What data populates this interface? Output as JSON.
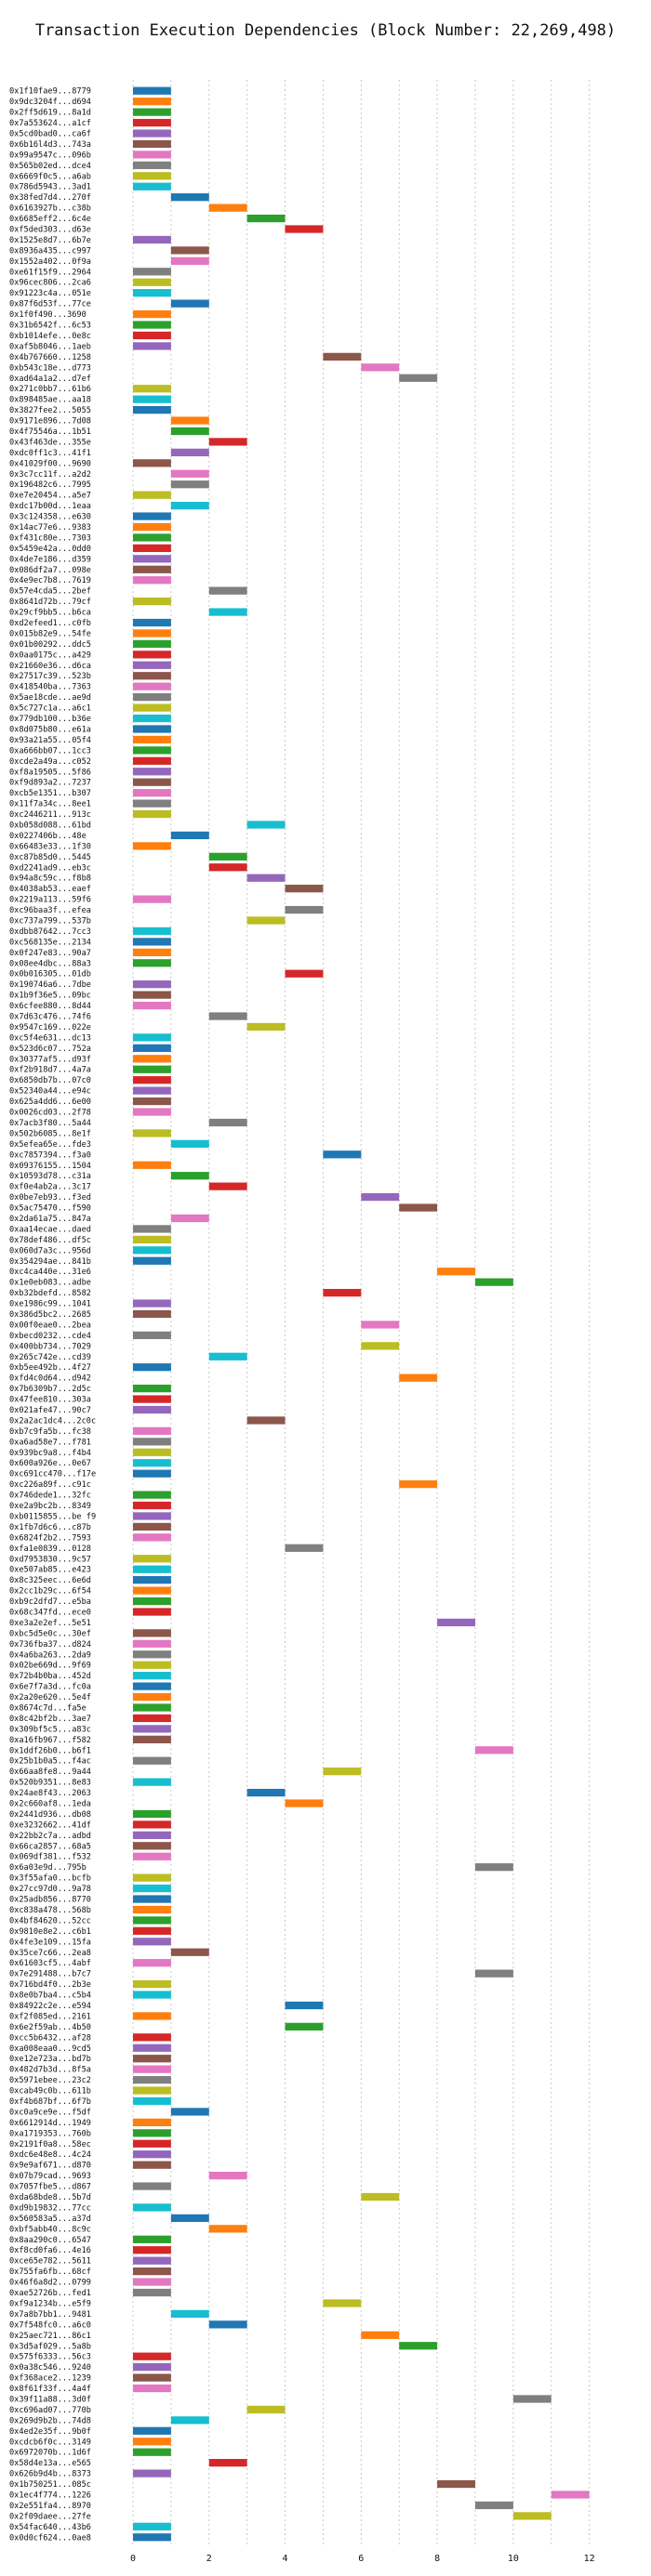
{
  "chart_data": {
    "type": "bar",
    "orientation": "horizontal",
    "title": "Transaction Execution Dependencies (Block Number: 22,269,498)",
    "xlabel": "",
    "ylabel": "",
    "xlim": [
      0,
      12.4
    ],
    "xticks": [
      0,
      2,
      4,
      6,
      8,
      10,
      12
    ],
    "grid": true,
    "bar_length": 1,
    "palette": [
      "#1f77b4",
      "#ff7f0e",
      "#2ca02c",
      "#d62728",
      "#9467bd",
      "#8c564b",
      "#e377c2",
      "#7f7f7f",
      "#bcbd22",
      "#17becf"
    ],
    "transactions": [
      {
        "label": "0x1f10fae9...8779",
        "start": 0
      },
      {
        "label": "0x9dc3204f...d694",
        "start": 0
      },
      {
        "label": "0x2ff5d619...8a1d",
        "start": 0
      },
      {
        "label": "0x7a553624...a1cf",
        "start": 0
      },
      {
        "label": "0x5cd0bad0...ca6f",
        "start": 0
      },
      {
        "label": "0x6b16l4d3...743a",
        "start": 0
      },
      {
        "label": "0x99a9547c...096b",
        "start": 0
      },
      {
        "label": "0x565b02ed...dce4",
        "start": 0
      },
      {
        "label": "0x6669f0c5...a6ab",
        "start": 0
      },
      {
        "label": "0x786d5943...3ad1",
        "start": 0
      },
      {
        "label": "0x38fed7d4...270f",
        "start": 1
      },
      {
        "label": "0x6163927b...c38b",
        "start": 2
      },
      {
        "label": "0x6685eff2...6c4e",
        "start": 3
      },
      {
        "label": "0xf5ded303...d63e",
        "start": 4
      },
      {
        "label": "0x1525e8d7...6b7e",
        "start": 0
      },
      {
        "label": "0x8936a435...c997",
        "start": 1
      },
      {
        "label": "0x1552a402...0f9a",
        "start": 1
      },
      {
        "label": "0xe61f15f9...2964",
        "start": 0
      },
      {
        "label": "0x96cec806...2ca6",
        "start": 0
      },
      {
        "label": "0x91223c4a...051e",
        "start": 0
      },
      {
        "label": "0x87f6d53f...77ce",
        "start": 1
      },
      {
        "label": "0x1f0f490...3690",
        "start": 0
      },
      {
        "label": "0x31b6542f...6c53",
        "start": 0
      },
      {
        "label": "0xb1014efe...0e8c",
        "start": 0
      },
      {
        "label": "0xaf5b8046...1aeb",
        "start": 0
      },
      {
        "label": "0x4b767660...1258",
        "start": 5
      },
      {
        "label": "0xb543c18e...d773",
        "start": 6
      },
      {
        "label": "0xad64a1a2...d7ef",
        "start": 7
      },
      {
        "label": "0x271c0bb7...61b6",
        "start": 0
      },
      {
        "label": "0x898485ae...aa18",
        "start": 0
      },
      {
        "label": "0x3827fee2...5055",
        "start": 0
      },
      {
        "label": "0x9171e896...7d08",
        "start": 1
      },
      {
        "label": "0x4f75546a...1b51",
        "start": 1
      },
      {
        "label": "0x43f463de...355e",
        "start": 2
      },
      {
        "label": "0xdc0ff1c3...41f1",
        "start": 1
      },
      {
        "label": "0x41029f00...9690",
        "start": 0
      },
      {
        "label": "0x3c7cc11f...a2d2",
        "start": 1
      },
      {
        "label": "0x196482c6...7995",
        "start": 1
      },
      {
        "label": "0xe7e20454...a5e7",
        "start": 0
      },
      {
        "label": "0xdc17b00d...1eaa",
        "start": 1
      },
      {
        "label": "0x3c124358...e630",
        "start": 0
      },
      {
        "label": "0x14ac77e6...9383",
        "start": 0
      },
      {
        "label": "0xf431c80e...7303",
        "start": 0
      },
      {
        "label": "0x5459e42a...0dd0",
        "start": 0
      },
      {
        "label": "0x4de7e186...d359",
        "start": 0
      },
      {
        "label": "0x086df2a7...098e",
        "start": 0
      },
      {
        "label": "0x4e9ec7b8...7619",
        "start": 0
      },
      {
        "label": "0x57e4cda5...2bef",
        "start": 2
      },
      {
        "label": "0x8641d72b...79cf",
        "start": 0
      },
      {
        "label": "0x29cf9bb5...b6ca",
        "start": 2
      },
      {
        "label": "0xd2efeed1...c0fb",
        "start": 0
      },
      {
        "label": "0x015b82e9...54fe",
        "start": 0
      },
      {
        "label": "0x01b00292...ddc5",
        "start": 0
      },
      {
        "label": "0x0aa0175c...a429",
        "start": 0
      },
      {
        "label": "0x21660e36...d6ca",
        "start": 0
      },
      {
        "label": "0x27517c39...523b",
        "start": 0
      },
      {
        "label": "0x418540ba...7363",
        "start": 0
      },
      {
        "label": "0x5ae18cde...ae9d",
        "start": 0
      },
      {
        "label": "0x5c727c1a...a6c1",
        "start": 0
      },
      {
        "label": "0x779db100...b36e",
        "start": 0
      },
      {
        "label": "0x8d075b80...e61a",
        "start": 0
      },
      {
        "label": "0x93a21a55...05f4",
        "start": 0
      },
      {
        "label": "0xa666bb07...1cc3",
        "start": 0
      },
      {
        "label": "0xcde2a49a...c052",
        "start": 0
      },
      {
        "label": "0xf8a19505...5f86",
        "start": 0
      },
      {
        "label": "0xf9d893a2...7237",
        "start": 0
      },
      {
        "label": "0xcb5e1351...b307",
        "start": 0
      },
      {
        "label": "0x11f7a34c...8ee1",
        "start": 0
      },
      {
        "label": "0xc2446211...913c",
        "start": 0
      },
      {
        "label": "0xb058d088...61bd",
        "start": 3
      },
      {
        "label": "0x0227406b...48e",
        "start": 1
      },
      {
        "label": "0x66483e33...1f30",
        "start": 0
      },
      {
        "label": "0xc87b85d0...5445",
        "start": 2
      },
      {
        "label": "0xd2241ad9...eb3c",
        "start": 2
      },
      {
        "label": "0x94a8c59c...f8b8",
        "start": 3
      },
      {
        "label": "0x4038ab53...eaef",
        "start": 4
      },
      {
        "label": "0x2219a113...59f6",
        "start": 0
      },
      {
        "label": "0xc96baa3f...efea",
        "start": 4
      },
      {
        "label": "0xc737a799...537b",
        "start": 3
      },
      {
        "label": "0xdbb87642...7cc3",
        "start": 0
      },
      {
        "label": "0xc568135e...2134",
        "start": 0
      },
      {
        "label": "0x0f247e83...90a7",
        "start": 0
      },
      {
        "label": "0x08ee4dbc...88a3",
        "start": 0
      },
      {
        "label": "0x0b016305...01db",
        "start": 4
      },
      {
        "label": "0x190746a6...7dbe",
        "start": 0
      },
      {
        "label": "0x1b9f36e5...09bc",
        "start": 0
      },
      {
        "label": "0x6cfee880...8d44",
        "start": 0
      },
      {
        "label": "0x7d63c476...74f6",
        "start": 2
      },
      {
        "label": "0x9547c169...022e",
        "start": 3
      },
      {
        "label": "0xc5f4e631...dc13",
        "start": 0
      },
      {
        "label": "0x523d6c07...752a",
        "start": 0
      },
      {
        "label": "0x30377af5...d93f",
        "start": 0
      },
      {
        "label": "0xf2b918d7...4a7a",
        "start": 0
      },
      {
        "label": "0x6850db7b...07c0",
        "start": 0
      },
      {
        "label": "0x52340a44...e94c",
        "start": 0
      },
      {
        "label": "0x625a4dd6...6e00",
        "start": 0
      },
      {
        "label": "0x0026cd03...2f78",
        "start": 0
      },
      {
        "label": "0x7acb3f80...5a44",
        "start": 2
      },
      {
        "label": "0x502b6085...8e1f",
        "start": 0
      },
      {
        "label": "0x5efea65e...fde3",
        "start": 1
      },
      {
        "label": "0xc7857394...f3a0",
        "start": 5
      },
      {
        "label": "0x09376155...1504",
        "start": 0
      },
      {
        "label": "0x10593d78...c31a",
        "start": 1
      },
      {
        "label": "0xf0e4ab2a...3c17",
        "start": 2
      },
      {
        "label": "0x0be7eb93...f3ed",
        "start": 6
      },
      {
        "label": "0x5ac75470...f590",
        "start": 7
      },
      {
        "label": "0x2da61a75...847a",
        "start": 1
      },
      {
        "label": "0xaa14ecae...daed",
        "start": 0
      },
      {
        "label": "0x78def486...df5c",
        "start": 0
      },
      {
        "label": "0x060d7a3c...956d",
        "start": 0
      },
      {
        "label": "0x354294ae...841b",
        "start": 0
      },
      {
        "label": "0xc4ca440e...31e6",
        "start": 8
      },
      {
        "label": "0x1e0eb083...adbe",
        "start": 9
      },
      {
        "label": "0xb32bdefd...8582",
        "start": 5
      },
      {
        "label": "0xe1986c99...1041",
        "start": 0
      },
      {
        "label": "0x386d5bc2...2685",
        "start": 0
      },
      {
        "label": "0x00f0eae0...2bea",
        "start": 6
      },
      {
        "label": "0xbecd0232...cde4",
        "start": 0
      },
      {
        "label": "0x400bb734...7029",
        "start": 6
      },
      {
        "label": "0x265c742e...cd39",
        "start": 2
      },
      {
        "label": "0xb5ee492b...4f27",
        "start": 0
      },
      {
        "label": "0xfd4c0d64...d942",
        "start": 7
      },
      {
        "label": "0x7b6309b7...2d5c",
        "start": 0
      },
      {
        "label": "0x47fee810...303a",
        "start": 0
      },
      {
        "label": "0x021afe47...90c7",
        "start": 0
      },
      {
        "label": "0x2a2ac1dc4...2c0c",
        "start": 3
      },
      {
        "label": "0xb7c9fa5b...fc38",
        "start": 0
      },
      {
        "label": "0xa6ad58e7...f781",
        "start": 0
      },
      {
        "label": "0x939bc9a8...f4b4",
        "start": 0
      },
      {
        "label": "0x600a926e...0e67",
        "start": 0
      },
      {
        "label": "0xc691cc470...f17e",
        "start": 0
      },
      {
        "label": "0xc226a89f...c91c",
        "start": 7
      },
      {
        "label": "0x746dede1...32fc",
        "start": 0
      },
      {
        "label": "0xe2a9bc2b...8349",
        "start": 0
      },
      {
        "label": "0xb0115855...be f9",
        "start": 0
      },
      {
        "label": "0x1fb7d6c6...c87b",
        "start": 0
      },
      {
        "label": "0x6824f2b2...7593",
        "start": 0
      },
      {
        "label": "0xfa1e0839...0128",
        "start": 4
      },
      {
        "label": "0xd7953830...9c57",
        "start": 0
      },
      {
        "label": "0xe507ab85...e423",
        "start": 0
      },
      {
        "label": "0x8c325eec...6e6d",
        "start": 0
      },
      {
        "label": "0x2cc1b29c...6f54",
        "start": 0
      },
      {
        "label": "0xb9c2dfd7...e5ba",
        "start": 0
      },
      {
        "label": "0x68c347fd...ece0",
        "start": 0
      },
      {
        "label": "0xe3a2e2ef...5e51",
        "start": 8
      },
      {
        "label": "0xbc5d5e0c...30ef",
        "start": 0
      },
      {
        "label": "0x736fba37...d824",
        "start": 0
      },
      {
        "label": "0x4a6ba263...2da9",
        "start": 0
      },
      {
        "label": "0x02be669d...9f69",
        "start": 0
      },
      {
        "label": "0x72b4b0ba...452d",
        "start": 0
      },
      {
        "label": "0x6e7f7a3d...fc0a",
        "start": 0
      },
      {
        "label": "0x2a20e620...5e4f",
        "start": 0
      },
      {
        "label": "0x8674c7d...fa5e",
        "start": 0
      },
      {
        "label": "0x8c42bf2b...3ae7",
        "start": 0
      },
      {
        "label": "0x309bf5c5...a83c",
        "start": 0
      },
      {
        "label": "0xa16fb967...f582",
        "start": 0
      },
      {
        "label": "0x1ddf26b0...b6f1",
        "start": 9
      },
      {
        "label": "0x25b1b0a5...f4ac",
        "start": 0
      },
      {
        "label": "0x66aa8fe8...9a44",
        "start": 5
      },
      {
        "label": "0x520b9351...8e83",
        "start": 0
      },
      {
        "label": "0x24ae8f43...2063",
        "start": 3
      },
      {
        "label": "0x2c660af8...1eda",
        "start": 4
      },
      {
        "label": "0x2441d936...db08",
        "start": 0
      },
      {
        "label": "0xe3232662...41df",
        "start": 0
      },
      {
        "label": "0x22bb2c7a...adbd",
        "start": 0
      },
      {
        "label": "0x66ca2857...68a5",
        "start": 0
      },
      {
        "label": "0x069df381...f532",
        "start": 0
      },
      {
        "label": "0x6a03e9d...795b",
        "start": 9
      },
      {
        "label": "0x3f55afa0...bcfb",
        "start": 0
      },
      {
        "label": "0x27cc97d0...9a78",
        "start": 0
      },
      {
        "label": "0x25adb856...8770",
        "start": 0
      },
      {
        "label": "0xc838a478...568b",
        "start": 0
      },
      {
        "label": "0x4bf84620...52cc",
        "start": 0
      },
      {
        "label": "0x9810e8e2...c6b1",
        "start": 0
      },
      {
        "label": "0x4fe3e109...15fa",
        "start": 0
      },
      {
        "label": "0x35ce7c66...2ea8",
        "start": 1
      },
      {
        "label": "0x61603cf5...4abf",
        "start": 0
      },
      {
        "label": "0x7e291488...b7c7",
        "start": 9
      },
      {
        "label": "0x716bd4f0...2b3e",
        "start": 0
      },
      {
        "label": "0x8e0b7ba4...c5b4",
        "start": 0
      },
      {
        "label": "0x84922c2e...e594",
        "start": 4
      },
      {
        "label": "0xf2f085ed...2161",
        "start": 0
      },
      {
        "label": "0x6e2f59ab...4b50",
        "start": 4
      },
      {
        "label": "0xcc5b6432...af28",
        "start": 0
      },
      {
        "label": "0xa008eaa0...9cd5",
        "start": 0
      },
      {
        "label": "0xe12e723a...bd7b",
        "start": 0
      },
      {
        "label": "0x482d7b3d...8f5a",
        "start": 0
      },
      {
        "label": "0x5971ebee...23c2",
        "start": 0
      },
      {
        "label": "0xcab49c0b...611b",
        "start": 0
      },
      {
        "label": "0xf4b687bf...6f7b",
        "start": 0
      },
      {
        "label": "0xc0a9ce9e...f5df",
        "start": 1
      },
      {
        "label": "0x6612914d...1949",
        "start": 0
      },
      {
        "label": "0xa1719353...760b",
        "start": 0
      },
      {
        "label": "0x2191f0a8...58ec",
        "start": 0
      },
      {
        "label": "0xdc6e48e8...4c24",
        "start": 0
      },
      {
        "label": "0x9e9af671...d870",
        "start": 0
      },
      {
        "label": "0x07b79cad...9693",
        "start": 2
      },
      {
        "label": "0x7057fbe5...d867",
        "start": 0
      },
      {
        "label": "0xda68bde8...5b7d",
        "start": 6
      },
      {
        "label": "0xd9b19832...77cc",
        "start": 0
      },
      {
        "label": "0x560583a5...a37d",
        "start": 1
      },
      {
        "label": "0xbf5abb40...8c9c",
        "start": 2
      },
      {
        "label": "0x8aa290c0...6547",
        "start": 0
      },
      {
        "label": "0xf8cd0fa6...4e16",
        "start": 0
      },
      {
        "label": "0xce65e782...5611",
        "start": 0
      },
      {
        "label": "0x755fa6fb...68cf",
        "start": 0
      },
      {
        "label": "0x46f6a8d2...0799",
        "start": 0
      },
      {
        "label": "0xae52726b...fed1",
        "start": 0
      },
      {
        "label": "0xf9a1234b...e5f9",
        "start": 5
      },
      {
        "label": "0x7a8b7bb1...9481",
        "start": 1
      },
      {
        "label": "0x7f548fc0...a6c0",
        "start": 2
      },
      {
        "label": "0x25aec721...86c1",
        "start": 6
      },
      {
        "label": "0x3d5af029...5a8b",
        "start": 7
      },
      {
        "label": "0x575f6333...56c3",
        "start": 0
      },
      {
        "label": "0x0a38c546...9240",
        "start": 0
      },
      {
        "label": "0xf368ace2...1239",
        "start": 0
      },
      {
        "label": "0x8f61f33f...4a4f",
        "start": 0
      },
      {
        "label": "0x39f11a88...3d0f",
        "start": 10
      },
      {
        "label": "0xc696ad07...770b",
        "start": 3
      },
      {
        "label": "0x269d9b2b...74d8",
        "start": 1
      },
      {
        "label": "0x4ed2e35f...9b0f",
        "start": 0
      },
      {
        "label": "0xcdcb6f0c...3149",
        "start": 0
      },
      {
        "label": "0x6972070b...1d6f",
        "start": 0
      },
      {
        "label": "0x58d4e13a...e565",
        "start": 2
      },
      {
        "label": "0x626b9d4b...8373",
        "start": 0
      },
      {
        "label": "0x1b750251...085c",
        "start": 8
      },
      {
        "label": "0x1ec4f774...1226",
        "start": 11
      },
      {
        "label": "0x2e551fa4...8970",
        "start": 9
      },
      {
        "label": "0x2f09daee...27fe",
        "start": 10
      },
      {
        "label": "0x54fac640...43b6",
        "start": 0
      },
      {
        "label": "0x0d0cf624...0ae8",
        "start": 0
      }
    ]
  }
}
